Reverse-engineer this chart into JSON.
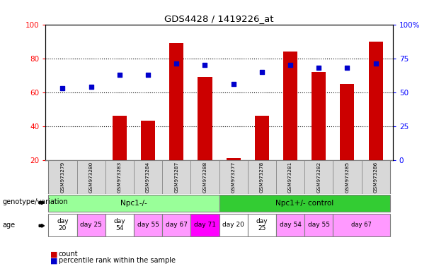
{
  "title": "GDS4428 / 1419226_at",
  "samples": [
    "GSM973279",
    "GSM973280",
    "GSM973283",
    "GSM973284",
    "GSM973287",
    "GSM973288",
    "GSM973277",
    "GSM973278",
    "GSM973281",
    "GSM973282",
    "GSM973285",
    "GSM973286"
  ],
  "counts": [
    20,
    20,
    46,
    43,
    89,
    69,
    21,
    46,
    84,
    72,
    65,
    90
  ],
  "percentile_ranks": [
    53,
    54,
    63,
    63,
    71,
    70,
    56,
    65,
    70,
    68,
    68,
    71
  ],
  "ylim_left": [
    20,
    100
  ],
  "ylim_right": [
    0,
    100
  ],
  "yticks_left": [
    20,
    40,
    60,
    80,
    100
  ],
  "ytick_labels_left": [
    "20",
    "40",
    "60",
    "80",
    "100"
  ],
  "yticks_right": [
    0,
    25,
    50,
    75,
    100
  ],
  "ytick_labels_right": [
    "0",
    "25",
    "50",
    "75",
    "100%"
  ],
  "bar_color": "#cc0000",
  "dot_color": "#0000cc",
  "bar_bottom": 20,
  "genotype_groups": [
    {
      "label": "Npc1-/-",
      "start": 0,
      "end": 6,
      "color": "#99ff99"
    },
    {
      "label": "Npc1+/- control",
      "start": 6,
      "end": 12,
      "color": "#33cc33"
    }
  ],
  "age_spans": [
    {
      "label": "day\n20",
      "start": 0,
      "end": 1,
      "color": "#ffffff"
    },
    {
      "label": "day 25",
      "start": 1,
      "end": 2,
      "color": "#ff99ff"
    },
    {
      "label": "day\n54",
      "start": 2,
      "end": 3,
      "color": "#ffffff"
    },
    {
      "label": "day 55",
      "start": 3,
      "end": 4,
      "color": "#ff99ff"
    },
    {
      "label": "day 67",
      "start": 4,
      "end": 5,
      "color": "#ff99ff"
    },
    {
      "label": "day 71",
      "start": 5,
      "end": 6,
      "color": "#ff00ff"
    },
    {
      "label": "day 20",
      "start": 6,
      "end": 7,
      "color": "#ffffff"
    },
    {
      "label": "day\n25",
      "start": 7,
      "end": 8,
      "color": "#ffffff"
    },
    {
      "label": "day 54",
      "start": 8,
      "end": 9,
      "color": "#ff99ff"
    },
    {
      "label": "day 55",
      "start": 9,
      "end": 10,
      "color": "#ff99ff"
    },
    {
      "label": "day 67",
      "start": 10,
      "end": 12,
      "color": "#ff99ff"
    }
  ],
  "legend_count_label": "count",
  "legend_percentile_label": "percentile rank within the sample",
  "genotype_label": "genotype/variation",
  "age_label": "age",
  "sample_bg_color": "#d8d8d8"
}
